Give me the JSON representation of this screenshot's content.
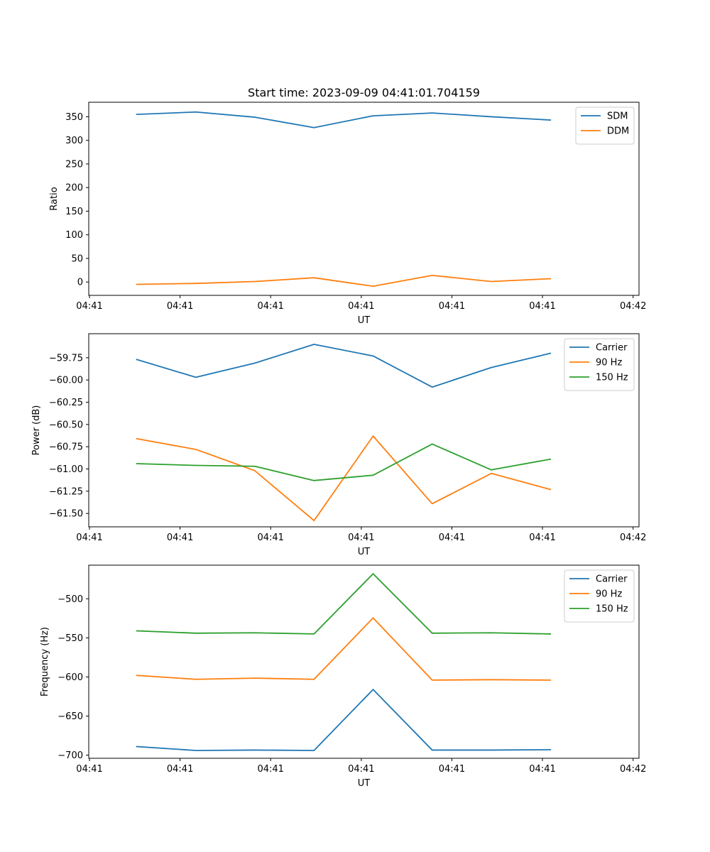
{
  "figure": {
    "title": "Start time: 2023-09-09 04:41:01.704159"
  },
  "chart_data": [
    {
      "type": "line",
      "title": "Start time: 2023-09-09 04:41:01.704159",
      "xlabel": "UT",
      "ylabel": "Ratio",
      "x": [
        1,
        2,
        3,
        4,
        5,
        6,
        7,
        8
      ],
      "xlim": [
        0.1875,
        9.5
      ],
      "xticks": [
        0.2,
        1.733,
        3.266,
        4.8,
        6.333,
        7.866,
        9.4
      ],
      "xtick_labels": [
        "04:41",
        "04:41",
        "04:41",
        "04:41",
        "04:41",
        "04:41",
        "04:42"
      ],
      "ylim": [
        -28.3,
        380.7
      ],
      "yticks": [
        0,
        50,
        100,
        150,
        200,
        250,
        300,
        350
      ],
      "ytick_labels": [
        "0",
        "50",
        "100",
        "150",
        "200",
        "250",
        "300",
        "350"
      ],
      "legend": "top-right",
      "series": [
        {
          "name": "SDM",
          "color": "#1f77b4",
          "values": [
            355,
            360,
            349,
            327,
            352,
            358,
            350,
            343
          ]
        },
        {
          "name": "DDM",
          "color": "#ff7f0e",
          "values": [
            -5,
            -3,
            1,
            9,
            -9,
            14,
            1,
            7
          ]
        }
      ]
    },
    {
      "type": "line",
      "title": "",
      "xlabel": "UT",
      "ylabel": "Power (dB)",
      "x": [
        1,
        2,
        3,
        4,
        5,
        6,
        7,
        8
      ],
      "xlim": [
        0.1875,
        9.5
      ],
      "xticks": [
        0.2,
        1.733,
        3.266,
        4.8,
        6.333,
        7.866,
        9.4
      ],
      "xtick_labels": [
        "04:41",
        "04:41",
        "04:41",
        "04:41",
        "04:41",
        "04:41",
        "04:42"
      ],
      "ylim": [
        -61.65,
        -59.48
      ],
      "yticks": [
        -61.5,
        -61.25,
        -61.0,
        -60.75,
        -60.5,
        -60.25,
        -60.0,
        -59.75
      ],
      "ytick_labels": [
        "−61.50",
        "−61.25",
        "−61.00",
        "−60.75",
        "−60.50",
        "−60.25",
        "−60.00",
        "−59.75"
      ],
      "legend": "top-right",
      "series": [
        {
          "name": "Carrier",
          "color": "#1f77b4",
          "values": [
            -59.77,
            -59.97,
            -59.81,
            -59.6,
            -59.73,
            -60.08,
            -59.86,
            -59.7
          ]
        },
        {
          "name": "90 Hz",
          "color": "#ff7f0e",
          "values": [
            -60.66,
            -60.78,
            -61.02,
            -61.58,
            -60.63,
            -61.39,
            -61.05,
            -61.23
          ]
        },
        {
          "name": "150 Hz",
          "color": "#2ca02c",
          "values": [
            -60.94,
            -60.96,
            -60.97,
            -61.13,
            -61.07,
            -60.72,
            -61.01,
            -60.89
          ]
        }
      ]
    },
    {
      "type": "line",
      "title": "",
      "xlabel": "UT",
      "ylabel": "Frequency (Hz)",
      "x": [
        1,
        2,
        3,
        4,
        5,
        6,
        7,
        8
      ],
      "xlim": [
        0.1875,
        9.5
      ],
      "xticks": [
        0.2,
        1.733,
        3.266,
        4.8,
        6.333,
        7.866,
        9.4
      ],
      "xtick_labels": [
        "04:41",
        "04:41",
        "04:41",
        "04:41",
        "04:41",
        "04:41",
        "04:42"
      ],
      "ylim": [
        -704,
        -457
      ],
      "yticks": [
        -700,
        -650,
        -600,
        -550,
        -500
      ],
      "ytick_labels": [
        "−700",
        "−650",
        "−600",
        "−550",
        "−500"
      ],
      "legend": "top-right",
      "series": [
        {
          "name": "Carrier",
          "color": "#1f77b4",
          "values": [
            -689,
            -694,
            -693.5,
            -694,
            -616,
            -693.5,
            -693.5,
            -693
          ]
        },
        {
          "name": "90 Hz",
          "color": "#ff7f0e",
          "values": [
            -598,
            -603,
            -601.5,
            -603,
            -524.5,
            -604,
            -603.5,
            -604
          ]
        },
        {
          "name": "150 Hz",
          "color": "#2ca02c",
          "values": [
            -541,
            -544,
            -543.5,
            -545,
            -468,
            -544,
            -543.5,
            -545
          ]
        }
      ]
    }
  ]
}
